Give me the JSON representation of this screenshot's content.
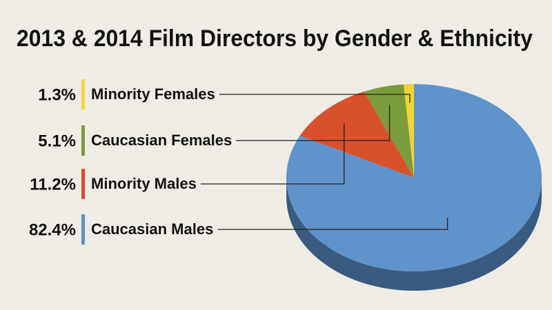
{
  "chart_data": {
    "type": "pie",
    "title": "2013 & 2014 Film Directors by Gender & Ethnicity",
    "categories": [
      "Minority Females",
      "Caucasian Females",
      "Minority Males",
      "Caucasian Males"
    ],
    "values": [
      1.3,
      5.1,
      11.2,
      82.4
    ],
    "value_labels": [
      "1.3%",
      "5.1%",
      "11.2%",
      "82.4%"
    ],
    "colors": [
      "#f1d531",
      "#7b9c3c",
      "#d9512b",
      "#5e93cc"
    ]
  }
}
